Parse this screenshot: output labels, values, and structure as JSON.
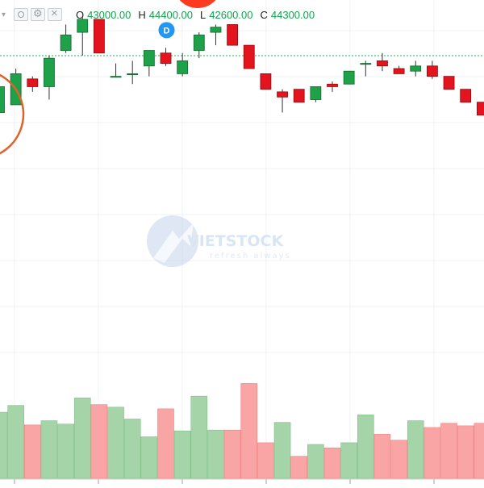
{
  "legend": {
    "open_label": "O",
    "open_value": "43000.00",
    "high_label": "H",
    "high_value": "44400.00",
    "low_label": "L",
    "low_value": "42600.00",
    "close_label": "C",
    "close_value": "44300.00"
  },
  "watermark": {
    "brand": "VIETSTOCK",
    "tagline": "refresh always"
  },
  "marker": {
    "label": "D"
  },
  "colors": {
    "up": "#1fa14a",
    "down": "#e3141d",
    "vol_up": "#a6d4a9",
    "vol_down": "#f9a5a5",
    "reference_line": "#21b14b",
    "annotation_circle": "#e0622a",
    "marker": "#2196f3"
  },
  "chart_data": {
    "type": "candlestick",
    "ylim": [
      30500,
      44900
    ],
    "reference_price": 43000,
    "candles": [
      {
        "o": 40800,
        "h": 42000,
        "l": 40600,
        "c": 41800
      },
      {
        "o": 41100,
        "h": 42500,
        "l": 41100,
        "c": 42300
      },
      {
        "o": 42100,
        "h": 42200,
        "l": 41600,
        "c": 41800
      },
      {
        "o": 41800,
        "h": 43000,
        "l": 41300,
        "c": 42900
      },
      {
        "o": 43200,
        "h": 44200,
        "l": 43100,
        "c": 43800
      },
      {
        "o": 43900,
        "h": 44500,
        "l": 43000,
        "c": 44400
      },
      {
        "o": 44400,
        "h": 44400,
        "l": 43100,
        "c": 43100
      },
      {
        "o": 42200,
        "h": 42700,
        "l": 42200,
        "c": 42200
      },
      {
        "o": 42300,
        "h": 42800,
        "l": 41900,
        "c": 42300
      },
      {
        "o": 42600,
        "h": 43200,
        "l": 42200,
        "c": 43200
      },
      {
        "o": 43100,
        "h": 43300,
        "l": 42600,
        "c": 42700
      },
      {
        "o": 42300,
        "h": 43100,
        "l": 42200,
        "c": 42800
      },
      {
        "o": 43200,
        "h": 43900,
        "l": 42900,
        "c": 43800
      },
      {
        "o": 43900,
        "h": 44200,
        "l": 43400,
        "c": 44100
      },
      {
        "o": 44200,
        "h": 44200,
        "l": 43400,
        "c": 43400
      },
      {
        "o": 43400,
        "h": 43400,
        "l": 42500,
        "c": 42500
      },
      {
        "o": 42300,
        "h": 42300,
        "l": 41700,
        "c": 41700
      },
      {
        "o": 41600,
        "h": 41700,
        "l": 40800,
        "c": 41400
      },
      {
        "o": 41700,
        "h": 41700,
        "l": 41200,
        "c": 41200
      },
      {
        "o": 41300,
        "h": 41800,
        "l": 41200,
        "c": 41800
      },
      {
        "o": 41900,
        "h": 42000,
        "l": 41600,
        "c": 41800
      },
      {
        "o": 41900,
        "h": 42400,
        "l": 41900,
        "c": 42400
      },
      {
        "o": 42700,
        "h": 42800,
        "l": 42200,
        "c": 42700
      },
      {
        "o": 42800,
        "h": 43100,
        "l": 42400,
        "c": 42600
      },
      {
        "o": 42500,
        "h": 42600,
        "l": 42300,
        "c": 42300
      },
      {
        "o": 42400,
        "h": 42800,
        "l": 42200,
        "c": 42600
      },
      {
        "o": 42600,
        "h": 42800,
        "l": 42100,
        "c": 42200
      },
      {
        "o": 42200,
        "h": 42200,
        "l": 41700,
        "c": 41700
      },
      {
        "o": 41700,
        "h": 41700,
        "l": 41200,
        "c": 41200
      },
      {
        "o": 41200,
        "h": 41200,
        "l": 40700,
        "c": 40700
      }
    ],
    "volumes": [
      {
        "v": 0.78,
        "dir": "up"
      },
      {
        "v": 0.86,
        "dir": "up"
      },
      {
        "v": 0.63,
        "dir": "down"
      },
      {
        "v": 0.68,
        "dir": "up"
      },
      {
        "v": 0.64,
        "dir": "up"
      },
      {
        "v": 0.95,
        "dir": "up"
      },
      {
        "v": 0.87,
        "dir": "down"
      },
      {
        "v": 0.84,
        "dir": "up"
      },
      {
        "v": 0.7,
        "dir": "up"
      },
      {
        "v": 0.49,
        "dir": "up"
      },
      {
        "v": 0.82,
        "dir": "down"
      },
      {
        "v": 0.56,
        "dir": "up"
      },
      {
        "v": 0.97,
        "dir": "up"
      },
      {
        "v": 0.57,
        "dir": "up"
      },
      {
        "v": 0.57,
        "dir": "down"
      },
      {
        "v": 1.12,
        "dir": "down"
      },
      {
        "v": 0.42,
        "dir": "down"
      },
      {
        "v": 0.66,
        "dir": "up"
      },
      {
        "v": 0.26,
        "dir": "down"
      },
      {
        "v": 0.4,
        "dir": "up"
      },
      {
        "v": 0.36,
        "dir": "down"
      },
      {
        "v": 0.42,
        "dir": "up"
      },
      {
        "v": 0.75,
        "dir": "up"
      },
      {
        "v": 0.52,
        "dir": "down"
      },
      {
        "v": 0.45,
        "dir": "down"
      },
      {
        "v": 0.68,
        "dir": "up"
      },
      {
        "v": 0.6,
        "dir": "down"
      },
      {
        "v": 0.65,
        "dir": "down"
      },
      {
        "v": 0.62,
        "dir": "down"
      },
      {
        "v": 0.65,
        "dir": "down"
      }
    ],
    "marker_index": 10,
    "annotation_index": 0,
    "grid": true
  }
}
